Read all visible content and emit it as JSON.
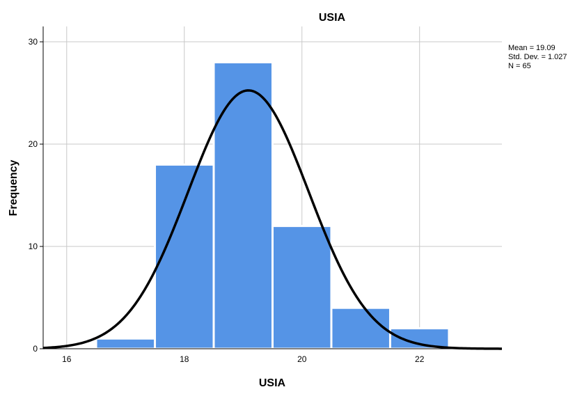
{
  "chart_data": {
    "type": "bar",
    "title": "USIA",
    "xlabel": "USIA",
    "ylabel": "Frequency",
    "bin_width": 1,
    "bins": [
      {
        "center": 17,
        "count": 1
      },
      {
        "center": 18,
        "count": 18
      },
      {
        "center": 19,
        "count": 28
      },
      {
        "center": 20,
        "count": 12
      },
      {
        "center": 21,
        "count": 4
      },
      {
        "center": 22,
        "count": 2
      }
    ],
    "xlim": [
      15.6,
      23.4
    ],
    "ylim": [
      0,
      31.5
    ],
    "x_ticks": [
      16,
      18,
      20,
      22
    ],
    "y_ticks": [
      0,
      10,
      20,
      30
    ],
    "grid": true,
    "bar_color": "#5594e6",
    "bar_edge_color": "#ffffff",
    "curve_color": "#000000",
    "normal_curve": {
      "mean": 19.09,
      "sd": 1.027,
      "n": 65
    },
    "stats": {
      "mean": "Mean = 19.09",
      "std_dev": "Std. Dev. = 1.027",
      "n": "N = 65"
    }
  }
}
